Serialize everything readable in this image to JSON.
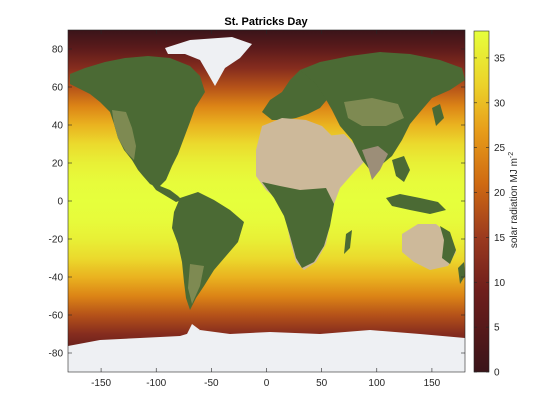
{
  "chart_data": {
    "type": "heatmap",
    "title": "St. Patricks Day",
    "xlim": [
      -180,
      180
    ],
    "ylim": [
      -90,
      90
    ],
    "x_ticks": [
      -150,
      -100,
      -50,
      0,
      50,
      100,
      150
    ],
    "y_ticks": [
      -80,
      -60,
      -40,
      -20,
      0,
      20,
      40,
      60,
      80
    ],
    "grid": false,
    "overlay": "satellite imagery of land masses (green/brown continents, white ice caps)",
    "field": {
      "description": "daily total solar radiation by latitude",
      "latitude": [
        90,
        85,
        80,
        70,
        60,
        50,
        40,
        30,
        20,
        10,
        0,
        -10,
        -20,
        -30,
        -40,
        -50,
        -60,
        -70,
        -80,
        -85,
        -90
      ],
      "value": [
        0,
        3,
        6,
        12,
        18,
        24,
        29,
        33,
        36,
        37.5,
        38,
        37.5,
        36,
        33,
        29,
        24,
        18,
        12,
        6,
        3,
        0
      ]
    },
    "colorbar": {
      "label": "solar radiation MJ m",
      "label_superscript": "-2",
      "ticks": [
        0,
        5,
        10,
        15,
        20,
        25,
        30,
        35
      ],
      "range": [
        0,
        38
      ],
      "colormap": [
        {
          "v": 0,
          "color": "#3a1419"
        },
        {
          "v": 9,
          "color": "#6e1e1c"
        },
        {
          "v": 15,
          "color": "#9b3a1f"
        },
        {
          "v": 21,
          "color": "#cf6a12"
        },
        {
          "v": 27,
          "color": "#e89e1a"
        },
        {
          "v": 32,
          "color": "#ecd22a"
        },
        {
          "v": 38,
          "color": "#e6ff3c"
        }
      ]
    }
  },
  "land": {
    "colors": {
      "forest": "#4b6a34",
      "grass": "#7e8a52",
      "desert": "#cdb99a",
      "ice": "#eef0f3",
      "rock": "#9c8e78"
    }
  }
}
